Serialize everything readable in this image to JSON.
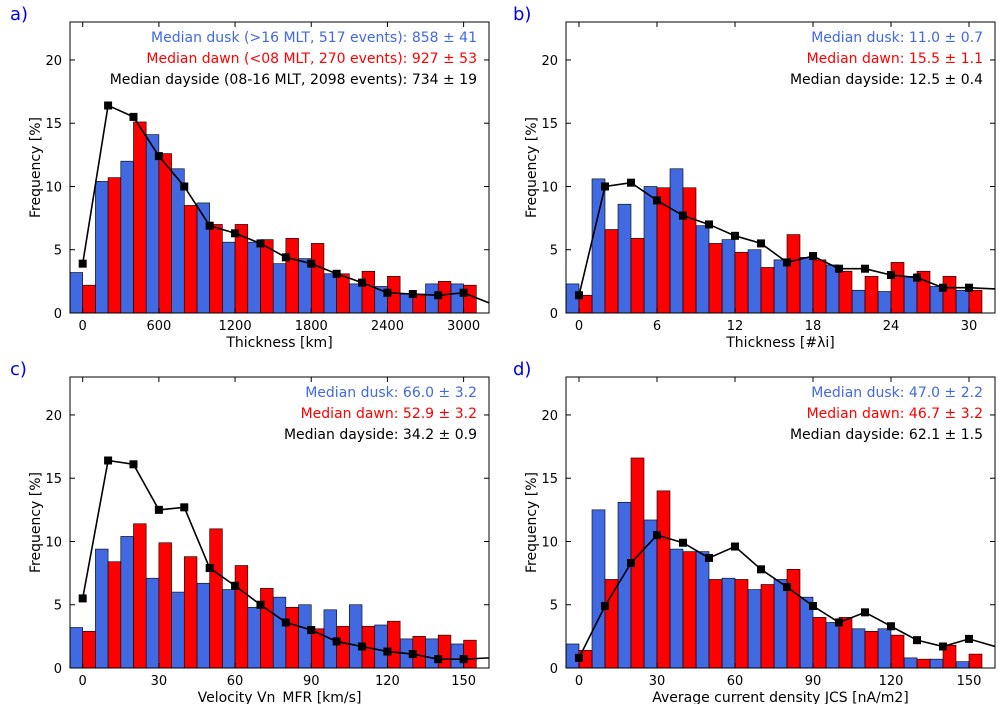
{
  "colors": {
    "dusk": "#4169e1",
    "dawn": "#ff0000",
    "dayside": "#000000"
  },
  "chart_data": [
    {
      "type": "bar",
      "panel_label": "a)",
      "xlabel": "Thickness [km]",
      "ylabel": "Frequency [%]",
      "xlim": [
        -100,
        3200
      ],
      "ylim": [
        0,
        23
      ],
      "xticks": [
        0,
        600,
        1200,
        1800,
        2400,
        3000
      ],
      "yticks": [
        0,
        5,
        10,
        15,
        20
      ],
      "annotations": [
        "Median dusk (>16 MLT, 517 events): 858 ± 41",
        "Median dawn (<08 MLT, 270 events): 927 ± 53",
        "Median dayside (08-16 MLT, 2098 events): 734 ± 19"
      ],
      "bar_width": 200,
      "x": [
        0,
        200,
        400,
        600,
        800,
        1000,
        1200,
        1400,
        1600,
        1800,
        2000,
        2200,
        2400,
        2600,
        2800,
        3000
      ],
      "series": [
        {
          "kind": "bar",
          "values": [
            3.2,
            10.4,
            12.0,
            14.1,
            11.4,
            8.7,
            5.6,
            5.6,
            3.9,
            4.3,
            3.1,
            2.3,
            2.1,
            1.5,
            2.3,
            2.3
          ]
        },
        {
          "kind": "bar",
          "values": [
            2.2,
            10.7,
            15.1,
            12.6,
            8.5,
            7.0,
            7.0,
            5.8,
            5.9,
            5.5,
            3.1,
            3.3,
            2.9,
            1.5,
            2.5,
            2.2
          ]
        },
        {
          "kind": "line",
          "x": [
            0,
            200,
            400,
            600,
            800,
            1000,
            1200,
            1400,
            1600,
            1800,
            2000,
            2200,
            2400,
            2600,
            2800,
            3000,
            3200
          ],
          "values": [
            3.9,
            16.4,
            15.5,
            12.4,
            10.0,
            6.9,
            6.3,
            5.5,
            4.4,
            3.9,
            3.1,
            2.4,
            1.6,
            1.5,
            1.4,
            1.6,
            0.8
          ]
        }
      ]
    },
    {
      "type": "bar",
      "panel_label": "b)",
      "xlabel": "Thickness [#λi]",
      "ylabel": "Frequency [%]",
      "xlim": [
        -1,
        32
      ],
      "ylim": [
        0,
        23
      ],
      "xticks": [
        0,
        6,
        12,
        18,
        24,
        30
      ],
      "yticks": [
        0,
        5,
        10,
        15,
        20
      ],
      "annotations": [
        "Median dusk: 11.0 ± 0.7",
        "Median dawn: 15.5 ± 1.1",
        "Median dayside: 12.5 ± 0.4"
      ],
      "bar_width": 2,
      "x": [
        0,
        2,
        4,
        6,
        8,
        10,
        12,
        14,
        16,
        18,
        20,
        22,
        24,
        26,
        28,
        30
      ],
      "series": [
        {
          "kind": "bar",
          "values": [
            2.3,
            10.6,
            8.6,
            10.0,
            11.4,
            6.9,
            5.8,
            5.0,
            4.2,
            4.4,
            3.8,
            1.8,
            1.7,
            2.9,
            2.1,
            1.8
          ]
        },
        {
          "kind": "bar",
          "values": [
            1.4,
            6.6,
            5.9,
            9.9,
            9.9,
            5.5,
            4.8,
            3.6,
            6.2,
            4.2,
            3.3,
            2.9,
            4.0,
            3.3,
            2.9,
            1.8
          ]
        },
        {
          "kind": "line",
          "x": [
            0,
            2,
            4,
            6,
            8,
            10,
            12,
            14,
            16,
            18,
            20,
            22,
            24,
            26,
            28,
            30,
            32
          ],
          "values": [
            1.4,
            10.0,
            10.3,
            8.9,
            7.7,
            7.0,
            6.1,
            5.5,
            4.0,
            4.5,
            3.5,
            3.5,
            3.0,
            2.8,
            2.0,
            2.0,
            1.9
          ]
        }
      ]
    },
    {
      "type": "bar",
      "panel_label": "c)",
      "xlabel": "Velocity Vn_MFR [km/s]",
      "ylabel": "Frequency [%]",
      "xlim": [
        -5,
        160
      ],
      "ylim": [
        0,
        23
      ],
      "xticks": [
        0,
        30,
        60,
        90,
        120,
        150
      ],
      "yticks": [
        0,
        5,
        10,
        15,
        20
      ],
      "annotations": [
        "Median dusk: 66.0 ± 3.2",
        "Median dawn: 52.9 ± 3.2",
        "Median dayside: 34.2 ± 0.9"
      ],
      "bar_width": 10,
      "x": [
        0,
        10,
        20,
        30,
        40,
        50,
        60,
        70,
        80,
        90,
        100,
        110,
        120,
        130,
        140,
        150
      ],
      "series": [
        {
          "kind": "bar",
          "values": [
            3.2,
            9.4,
            10.4,
            7.1,
            6.0,
            6.7,
            6.2,
            4.8,
            5.6,
            5.0,
            4.6,
            5.0,
            3.4,
            2.3,
            2.3,
            1.9
          ]
        },
        {
          "kind": "bar",
          "values": [
            2.9,
            8.4,
            11.4,
            9.9,
            8.8,
            11.0,
            8.1,
            6.3,
            4.8,
            3.1,
            3.3,
            3.3,
            3.7,
            2.5,
            2.6,
            2.2
          ]
        },
        {
          "kind": "line",
          "x": [
            0,
            10,
            20,
            30,
            40,
            50,
            60,
            70,
            80,
            90,
            100,
            110,
            120,
            130,
            140,
            150,
            160
          ],
          "values": [
            5.5,
            16.4,
            16.1,
            12.5,
            12.7,
            7.9,
            6.5,
            5.0,
            3.6,
            3.0,
            2.1,
            1.7,
            1.3,
            1.1,
            0.7,
            0.7,
            0.8
          ]
        }
      ]
    },
    {
      "type": "bar",
      "panel_label": "d)",
      "xlabel": "Average current density JCS [nA/m2]",
      "ylabel": "Frequency [%]",
      "xlim": [
        -5,
        160
      ],
      "ylim": [
        0,
        23
      ],
      "xticks": [
        0,
        30,
        60,
        90,
        120,
        150
      ],
      "yticks": [
        0,
        5,
        10,
        15,
        20
      ],
      "annotations": [
        "Median dusk: 47.0 ± 2.2",
        "Median dawn: 46.7 ± 3.2",
        "Median dayside: 62.1 ± 1.5"
      ],
      "bar_width": 10,
      "x": [
        0,
        10,
        20,
        30,
        40,
        50,
        60,
        70,
        80,
        90,
        100,
        110,
        120,
        130,
        140,
        150
      ],
      "series": [
        {
          "kind": "bar",
          "values": [
            1.9,
            12.5,
            13.1,
            11.7,
            9.4,
            9.2,
            7.1,
            6.2,
            7.0,
            5.6,
            3.6,
            3.1,
            3.1,
            0.8,
            0.7,
            0.5
          ]
        },
        {
          "kind": "bar",
          "values": [
            1.4,
            7.0,
            16.6,
            14.0,
            9.2,
            7.0,
            7.0,
            6.6,
            7.8,
            4.0,
            4.0,
            2.9,
            2.6,
            0.7,
            1.8,
            1.1
          ]
        },
        {
          "kind": "line",
          "x": [
            0,
            10,
            20,
            30,
            40,
            50,
            60,
            70,
            80,
            90,
            100,
            110,
            120,
            130,
            140,
            150,
            160
          ],
          "values": [
            0.8,
            4.9,
            8.3,
            10.5,
            9.9,
            8.7,
            9.6,
            7.8,
            6.4,
            4.9,
            3.6,
            4.4,
            3.3,
            2.2,
            1.7,
            2.3,
            1.7
          ]
        }
      ]
    }
  ]
}
